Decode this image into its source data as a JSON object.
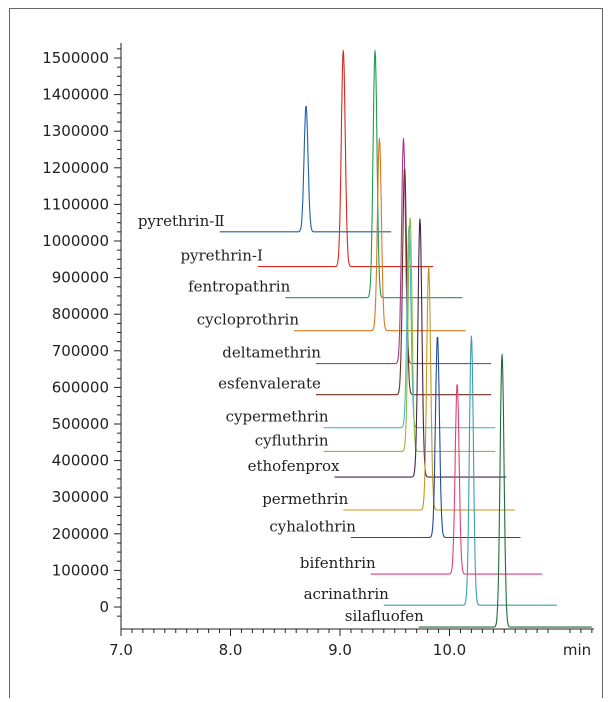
{
  "chart_data": {
    "type": "line",
    "title": "",
    "xlabel": "min",
    "ylabel": "",
    "xlim": [
      7.0,
      10.3
    ],
    "ylim": [
      -50000,
      1560000
    ],
    "x_ticks": [
      "7.0",
      "8.0",
      "9.0",
      "10.0"
    ],
    "y_ticks": [
      "0",
      "100000",
      "200000",
      "300000",
      "400000",
      "500000",
      "600000",
      "700000",
      "800000",
      "900000",
      "1000000",
      "1100000",
      "1200000",
      "1300000",
      "1400000",
      "1500000"
    ],
    "grid": false,
    "legend": "none",
    "series": [
      {
        "name": "pyrethrin-Ⅱ",
        "color": "#1f5fa8",
        "baseline": 1025000,
        "x_start": 7.9,
        "x_end": 9.47,
        "peak_x": 8.69,
        "peak_y": 1370000
      },
      {
        "name": "pyrethrin-Ⅰ",
        "color": "#d42a20",
        "baseline": 930000,
        "x_start": 8.25,
        "x_end": 9.85,
        "peak_x": 9.03,
        "peak_y": 1520000
      },
      {
        "name": "fentropathrin",
        "color": "#1f9b50",
        "baseline": 845000,
        "x_start": 8.5,
        "x_end": 10.12,
        "peak_x": 9.32,
        "peak_y": 1520000
      },
      {
        "name": "cycloprothrin",
        "color": "#d97a1e",
        "baseline": 755000,
        "x_start": 8.58,
        "x_end": 10.15,
        "peak_x": 9.36,
        "peak_y": 1280000
      },
      {
        "name": "deltamethrin",
        "color": "#a03a8c",
        "baseline": 665000,
        "x_start": 8.78,
        "x_end": 10.38,
        "peak_x": 9.58,
        "peak_y": 1280000
      },
      {
        "name": "esfenvalerate",
        "color": "#6e2f1f",
        "baseline": 580000,
        "x_start": 8.78,
        "x_end": 10.38,
        "peak_x": 9.59,
        "peak_y": 1200000
      },
      {
        "name": "cypermethrin",
        "color": "#44bcc8",
        "baseline": 490000,
        "x_start": 8.85,
        "x_end": 10.42,
        "peak_x": 9.63,
        "peak_y": 1040000
      },
      {
        "name": "cyfluthrin",
        "color": "#8bbd3a",
        "baseline": 425000,
        "x_start": 8.85,
        "x_end": 10.42,
        "peak_x": 9.64,
        "peak_y": 1065000
      },
      {
        "name": "ethofenprox",
        "color": "#4a2246",
        "baseline": 355000,
        "x_start": 8.95,
        "x_end": 10.52,
        "peak_x": 9.73,
        "peak_y": 1060000
      },
      {
        "name": "permethrin",
        "color": "#c8961a",
        "baseline": 265000,
        "x_start": 9.03,
        "x_end": 10.6,
        "peak_x": 9.81,
        "peak_y": 930000
      },
      {
        "name": "cyhalothrin",
        "color": "#1f4aa0",
        "baseline": 190000,
        "x_start": 9.1,
        "x_end": 10.65,
        "peak_x": 9.89,
        "peak_y": 740000
      },
      {
        "name": "bifenthrin",
        "color": "#e0407a",
        "baseline": 90000,
        "x_start": 9.28,
        "x_end": 10.85,
        "peak_x": 10.07,
        "peak_y": 610000
      },
      {
        "name": "acrinathrin",
        "color": "#3a9fb0",
        "baseline": 5000,
        "x_start": 9.4,
        "x_end": 10.98,
        "peak_x": 10.2,
        "peak_y": 740000
      },
      {
        "name": "silafluofen",
        "color": "#1e6e3a",
        "baseline": -55000,
        "x_start": 9.72,
        "x_end": 11.3,
        "peak_x": 10.48,
        "peak_y": 690000
      }
    ]
  }
}
